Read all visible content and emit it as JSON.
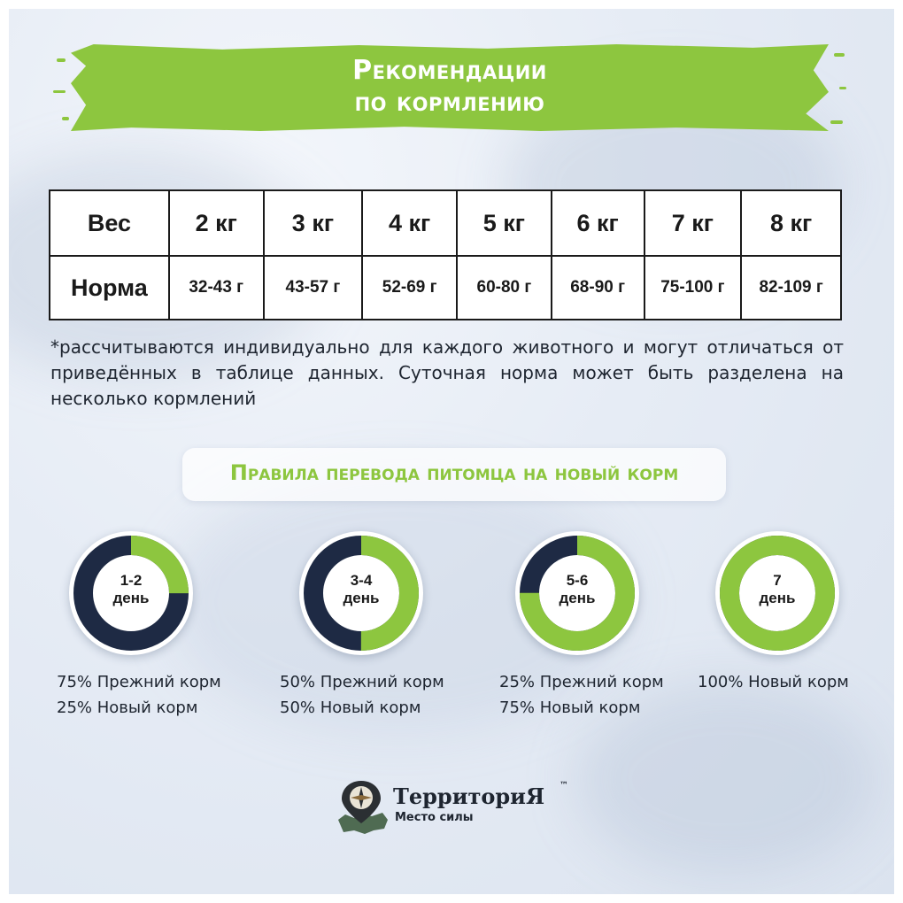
{
  "header": {
    "title_line1": "Рекомендации",
    "title_line2": "по кормлению"
  },
  "colors": {
    "accent_green": "#8dc63f",
    "navy": "#1e2a44"
  },
  "table": {
    "weight_label": "Вес",
    "norm_label": "Норма",
    "weights": [
      "2 кг",
      "3 кг",
      "4 кг",
      "5 кг",
      "6 кг",
      "7 кг",
      "8 кг"
    ],
    "norms": [
      "32-43 г",
      "43-57 г",
      "52-69 г",
      "60-80 г",
      "68-90 г",
      "75-100 г",
      "82-109 г"
    ]
  },
  "note": "*рассчитываются индивидуально для каждого животного и могут отличаться от приведённых в таблице данных. Суточная норма может быть разделена на несколько кормлений",
  "transition": {
    "title": "Правила перевода питомца на новый корм",
    "stages": [
      {
        "label_top": "1-2",
        "label_bottom": "день",
        "new_share": 0.25,
        "line1": "75% Прежний корм",
        "line2": "25% Новый корм"
      },
      {
        "label_top": "3-4",
        "label_bottom": "день",
        "new_share": 0.5,
        "line1": "50% Прежний корм",
        "line2": "50% Новый корм"
      },
      {
        "label_top": "5-6",
        "label_bottom": "день",
        "new_share": 0.75,
        "line1": "25% Прежний корм",
        "line2": "75% Новый корм"
      },
      {
        "label_top": "7",
        "label_bottom": "день",
        "new_share": 1.0,
        "line1": "100% Новый корм",
        "line2": ""
      }
    ]
  },
  "logo": {
    "name": "ТерриториЯ",
    "tm": "™",
    "tagline": "Место силы",
    "icon": "compass-map-icon"
  }
}
